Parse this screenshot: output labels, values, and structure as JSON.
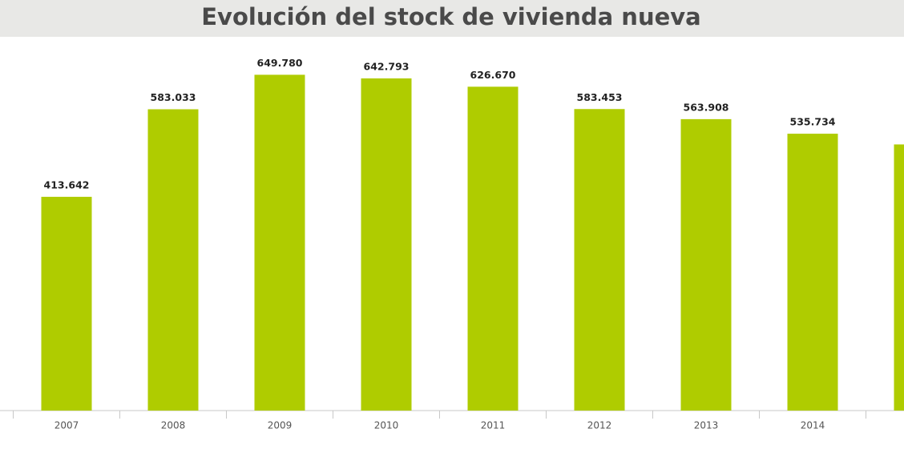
{
  "chart_data": {
    "type": "bar",
    "title": "Evolución del stock de vivienda nueva",
    "categories": [
      "2007",
      "2008",
      "2009",
      "2010",
      "2011",
      "2012",
      "2013",
      "2014",
      null
    ],
    "values": [
      413642,
      583033,
      649780,
      642793,
      626670,
      583453,
      563908,
      535734,
      515000
    ],
    "value_labels": [
      "413.642",
      "583.033",
      "649.780",
      "642.793",
      "626.670",
      "583.453",
      "563.908",
      "535.734",
      null
    ],
    "color": "#afcc00",
    "ylim": [
      0,
      700000
    ]
  }
}
